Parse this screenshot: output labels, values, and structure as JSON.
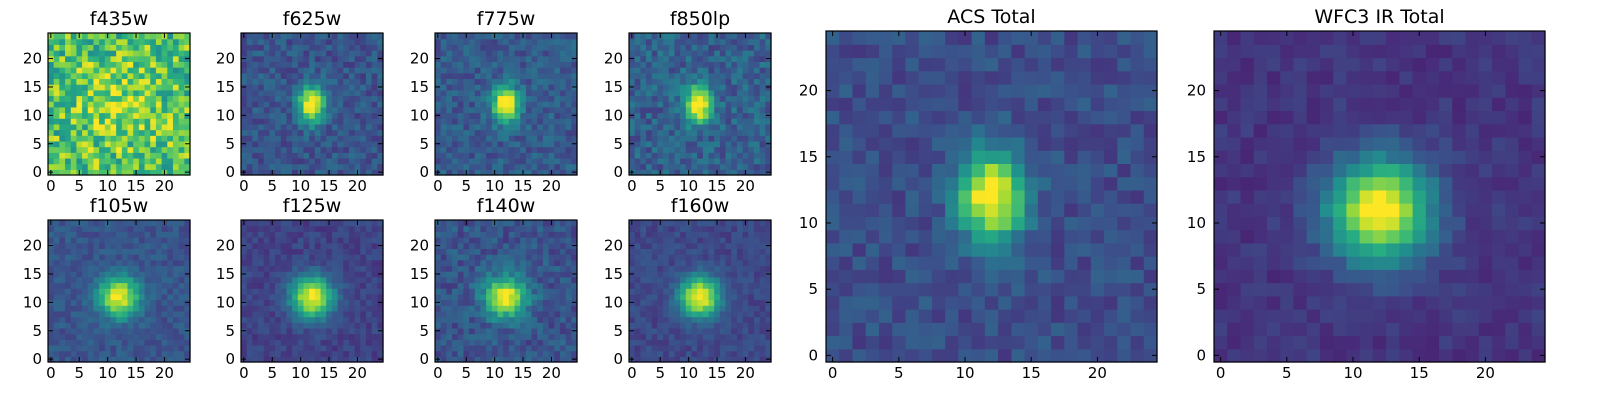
{
  "chart_data": {
    "type": "heatmap",
    "colormap": "viridis",
    "grid_size": 25,
    "panels": [
      {
        "id": "f435w",
        "title": "f435w",
        "center": [
          12,
          12
        ],
        "sigma": [
          5,
          5
        ],
        "peak": 0.15,
        "noise": 0.24,
        "background": 0.72,
        "seed": 11,
        "xticks": [
          "0",
          "5",
          "10",
          "15",
          "20"
        ],
        "yticks": [
          "0",
          "5",
          "10",
          "15",
          "20"
        ]
      },
      {
        "id": "f625w",
        "title": "f625w",
        "center": [
          12,
          12
        ],
        "sigma": [
          1.6,
          2.2
        ],
        "peak": 0.82,
        "noise": 0.1,
        "background": 0.27,
        "seed": 23,
        "xticks": [
          "0",
          "5",
          "10",
          "15",
          "20"
        ],
        "yticks": [
          "0",
          "5",
          "10",
          "15",
          "20"
        ]
      },
      {
        "id": "f775w",
        "title": "f775w",
        "center": [
          12,
          12
        ],
        "sigma": [
          1.6,
          2.2
        ],
        "peak": 0.82,
        "noise": 0.1,
        "background": 0.29,
        "seed": 37,
        "xticks": [
          "0",
          "5",
          "10",
          "15",
          "20"
        ],
        "yticks": [
          "0",
          "5",
          "10",
          "15",
          "20"
        ]
      },
      {
        "id": "f850lp",
        "title": "f850lp",
        "center": [
          11.8,
          12
        ],
        "sigma": [
          1.7,
          2.2
        ],
        "peak": 0.8,
        "noise": 0.12,
        "background": 0.31,
        "seed": 41,
        "xticks": [
          "0",
          "5",
          "10",
          "15",
          "20"
        ],
        "yticks": [
          "0",
          "5",
          "10",
          "15",
          "20"
        ]
      },
      {
        "id": "f105w",
        "title": "f105w",
        "center": [
          12,
          11
        ],
        "sigma": [
          2.5,
          2.5
        ],
        "peak": 0.72,
        "noise": 0.07,
        "background": 0.27,
        "seed": 53,
        "xticks": [
          "0",
          "5",
          "10",
          "15",
          "20"
        ],
        "yticks": [
          "0",
          "5",
          "10",
          "15",
          "20"
        ]
      },
      {
        "id": "f125w",
        "title": "f125w",
        "center": [
          12,
          11
        ],
        "sigma": [
          2.6,
          2.6
        ],
        "peak": 0.8,
        "noise": 0.06,
        "background": 0.2,
        "seed": 61,
        "xticks": [
          "0",
          "5",
          "10",
          "15",
          "20"
        ],
        "yticks": [
          "0",
          "5",
          "10",
          "15",
          "20"
        ]
      },
      {
        "id": "f140w",
        "title": "f140w",
        "center": [
          12,
          11
        ],
        "sigma": [
          2.5,
          2.5
        ],
        "peak": 0.72,
        "noise": 0.1,
        "background": 0.27,
        "seed": 71,
        "xticks": [
          "0",
          "5",
          "10",
          "15",
          "20"
        ],
        "yticks": [
          "0",
          "5",
          "10",
          "15",
          "20"
        ]
      },
      {
        "id": "f160w",
        "title": "f160w",
        "center": [
          12,
          11
        ],
        "sigma": [
          2.5,
          2.5
        ],
        "peak": 0.8,
        "noise": 0.06,
        "background": 0.22,
        "seed": 83,
        "xticks": [
          "0",
          "5",
          "10",
          "15",
          "20"
        ],
        "yticks": [
          "0",
          "5",
          "10",
          "15",
          "20"
        ]
      },
      {
        "id": "acs-total",
        "title": "ACS Total",
        "center": [
          12,
          12
        ],
        "sigma": [
          1.7,
          2.4
        ],
        "peak": 0.82,
        "noise": 0.08,
        "background": 0.24,
        "seed": 97,
        "xticks": [
          "0",
          "5",
          "10",
          "15",
          "20"
        ],
        "yticks": [
          "0",
          "5",
          "10",
          "15",
          "20"
        ]
      },
      {
        "id": "wfc3-ir-total",
        "title": "WFC3 IR Total",
        "center": [
          12,
          11
        ],
        "sigma": [
          2.7,
          2.7
        ],
        "peak": 0.86,
        "noise": 0.05,
        "background": 0.16,
        "seed": 101,
        "xticks": [
          "0",
          "5",
          "10",
          "15",
          "20"
        ],
        "yticks": [
          "0",
          "5",
          "10",
          "15",
          "20"
        ]
      }
    ]
  }
}
